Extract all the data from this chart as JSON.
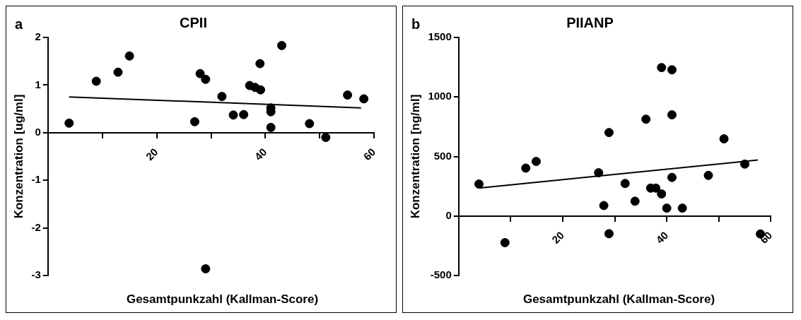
{
  "chart_data": [
    {
      "type": "scatter",
      "title": "CPII",
      "annotations": [
        "a"
      ],
      "xlabel": "Gesamtpunkzahl (Kallman-Score)",
      "ylabel": "Konzentration [ug/ml]",
      "xlim": [
        0,
        60
      ],
      "xticks": [
        {
          "value": 10,
          "label": null
        },
        20,
        {
          "value": 30,
          "label": null
        },
        40,
        {
          "value": 50,
          "label": null
        },
        60
      ],
      "ylim": [
        -3,
        2
      ],
      "yticks": [
        -3,
        -2,
        -1,
        0,
        1,
        2
      ],
      "grid": false,
      "legend": false,
      "series": [
        {
          "marker": "circle",
          "color": "#000000",
          "x": [
            3.9,
            8.9,
            12.9,
            15.0,
            27.0,
            28.0,
            29.0,
            29.0,
            32.0,
            34.1,
            36.0,
            37.1,
            38.1,
            39.1,
            39.0,
            41.0,
            41.0,
            41.0,
            43.0,
            48.1,
            51.1,
            55.1,
            58.1
          ],
          "values": [
            0.2,
            1.08,
            1.27,
            1.61,
            0.23,
            1.24,
            1.12,
            -2.86,
            0.76,
            0.37,
            0.38,
            0.99,
            0.95,
            0.9,
            1.45,
            0.52,
            0.44,
            0.11,
            1.83,
            0.19,
            -0.1,
            0.79,
            0.71
          ]
        },
        {
          "type": "line",
          "marker": "none",
          "color": "#000000",
          "x": [
            3.9,
            57.6
          ],
          "values": [
            0.75,
            0.52
          ]
        }
      ]
    },
    {
      "type": "scatter",
      "title": "PIIANP",
      "annotations": [
        "b"
      ],
      "xlabel": "Gesamtpunkzahl (Kallman-Score)",
      "ylabel": "Konzentration [ng/ml]",
      "xlim": [
        0,
        60
      ],
      "xticks": [
        {
          "value": 10,
          "label": null
        },
        20,
        {
          "value": 30,
          "label": null
        },
        40,
        {
          "value": 50,
          "label": null
        },
        60
      ],
      "ylim": [
        -500,
        1500
      ],
      "yticks": [
        -500,
        0,
        500,
        1000,
        1500
      ],
      "grid": false,
      "legend": false,
      "series": [
        {
          "marker": "circle",
          "color": "#000000",
          "x": [
            3.9,
            8.9,
            12.9,
            14.9,
            26.9,
            27.9,
            28.9,
            28.9,
            32.0,
            33.9,
            36.0,
            36.9,
            37.9,
            39.0,
            39.0,
            40.0,
            41.0,
            41.0,
            41.0,
            43.0,
            48.0,
            51.0,
            55.0,
            58.0
          ],
          "values": [
            268,
            -224,
            402,
            458,
            363,
            88,
            701,
            -149,
            273,
            124,
            813,
            234,
            234,
            1247,
            185,
            66,
            1228,
            850,
            324,
            66,
            341,
            648,
            436,
            -151
          ]
        },
        {
          "type": "line",
          "marker": "none",
          "color": "#000000",
          "x": [
            3.9,
            57.5
          ],
          "values": [
            235,
            470
          ]
        }
      ]
    }
  ]
}
